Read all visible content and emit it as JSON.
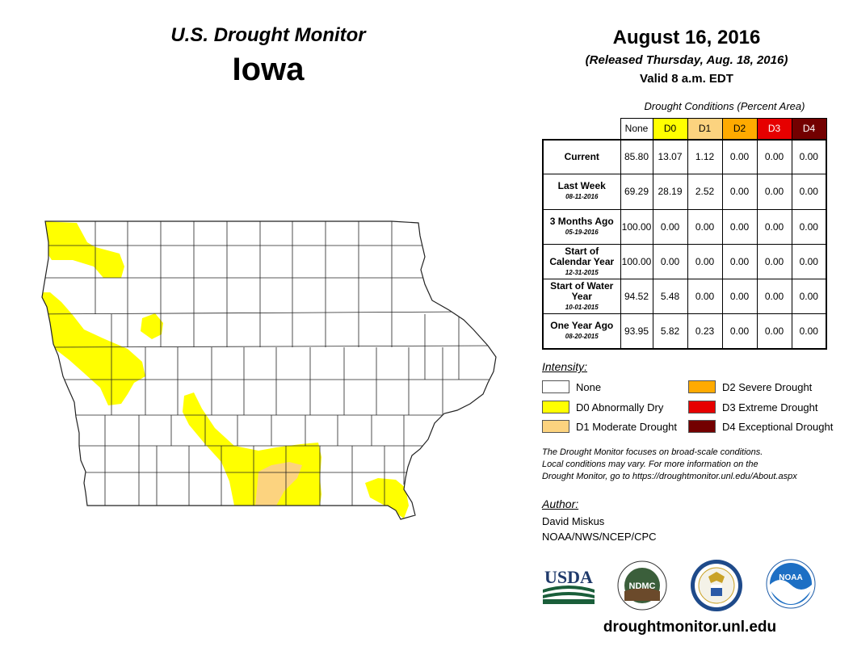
{
  "header": {
    "title": "U.S. Drought Monitor",
    "state": "Iowa",
    "date": "August 16, 2016",
    "released": "(Released Thursday, Aug. 18, 2016)",
    "valid": "Valid 8 a.m. EDT"
  },
  "table": {
    "caption": "Drought Conditions (Percent Area)",
    "columns": [
      "None",
      "D0",
      "D1",
      "D2",
      "D3",
      "D4"
    ],
    "column_colors": [
      "#ffffff",
      "#ffff00",
      "#fcd37f",
      "#ffaa00",
      "#e60000",
      "#730000"
    ],
    "column_text_colors": [
      "#000000",
      "#000000",
      "#000000",
      "#000000",
      "#ffffff",
      "#ffffff"
    ],
    "rows": [
      {
        "label": "Current",
        "date": "",
        "values": [
          "85.80",
          "13.07",
          "1.12",
          "0.00",
          "0.00",
          "0.00"
        ]
      },
      {
        "label": "Last Week",
        "date": "08-11-2016",
        "values": [
          "69.29",
          "28.19",
          "2.52",
          "0.00",
          "0.00",
          "0.00"
        ]
      },
      {
        "label": "3 Months Ago",
        "date": "05-19-2016",
        "values": [
          "100.00",
          "0.00",
          "0.00",
          "0.00",
          "0.00",
          "0.00"
        ]
      },
      {
        "label": "Start of Calendar Year",
        "date": "12-31-2015",
        "values": [
          "100.00",
          "0.00",
          "0.00",
          "0.00",
          "0.00",
          "0.00"
        ]
      },
      {
        "label": "Start of Water Year",
        "date": "10-01-2015",
        "values": [
          "94.52",
          "5.48",
          "0.00",
          "0.00",
          "0.00",
          "0.00"
        ]
      },
      {
        "label": "One Year Ago",
        "date": "08-20-2015",
        "values": [
          "93.95",
          "5.82",
          "0.23",
          "0.00",
          "0.00",
          "0.00"
        ]
      }
    ]
  },
  "legend": {
    "title": "Intensity:",
    "items": [
      {
        "label": "None",
        "color": "#ffffff"
      },
      {
        "label": "D0 Abnormally Dry",
        "color": "#ffff00"
      },
      {
        "label": "D1 Moderate Drought",
        "color": "#fcd37f"
      },
      {
        "label": "D2 Severe Drought",
        "color": "#ffaa00"
      },
      {
        "label": "D3 Extreme Drought",
        "color": "#e60000"
      },
      {
        "label": "D4 Exceptional Drought",
        "color": "#730000"
      }
    ]
  },
  "note": {
    "line1": "The Drought Monitor focuses on broad-scale conditions.",
    "line2": "Local conditions may vary. For more information on the",
    "line3": "Drought Monitor, go to https://droughtmonitor.unl.edu/About.aspx"
  },
  "author": {
    "title": "Author:",
    "name": "David Miskus",
    "org": "NOAA/NWS/NCEP/CPC"
  },
  "logos": {
    "usda": "USDA",
    "ndmc": "NDMC",
    "noaa": "NOAA",
    "commerce_icon": "department-of-commerce-seal-icon"
  },
  "website": "droughtmonitor.unl.edu"
}
